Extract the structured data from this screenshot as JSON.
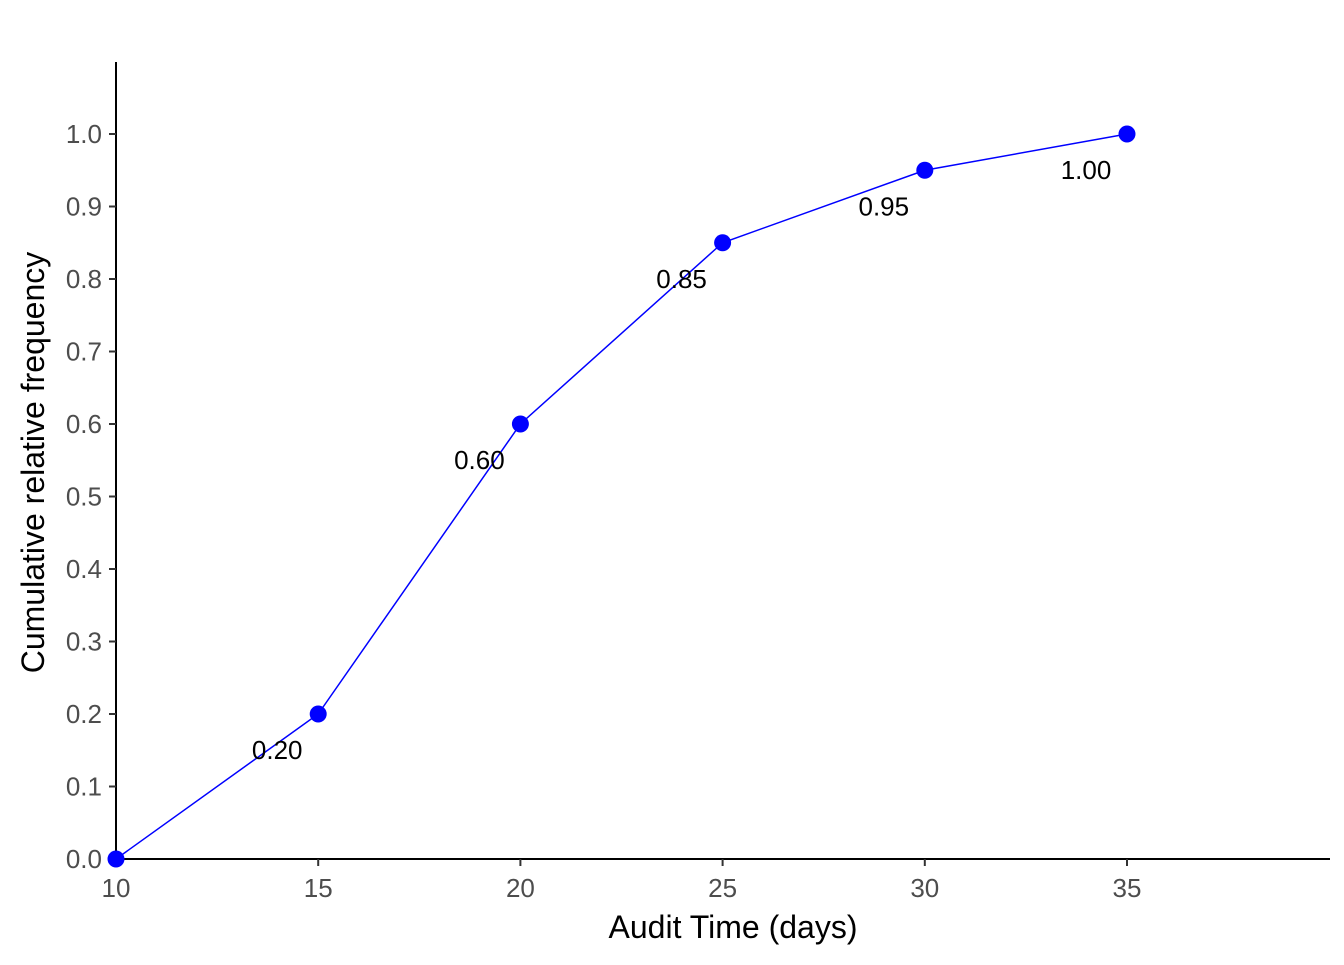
{
  "chart_data": {
    "type": "line",
    "title": "",
    "xlabel": "Audit Time (days)",
    "ylabel": "Cumulative relative frequency",
    "x": [
      10,
      15,
      20,
      25,
      30,
      35
    ],
    "series": [
      {
        "values": [
          0.0,
          0.2,
          0.6,
          0.85,
          0.95,
          1.0
        ],
        "data_labels": [
          "",
          "0.20",
          "0.60",
          "0.85",
          "0.95",
          "1.00"
        ],
        "color": "#0000ff",
        "marker": "circle"
      }
    ],
    "xlim": [
      10,
      40
    ],
    "ylim": [
      0,
      1.1
    ],
    "x_ticks": [
      10,
      15,
      20,
      25,
      30,
      35
    ],
    "x_tick_labels": [
      "10",
      "15",
      "20",
      "25",
      "30",
      "35"
    ],
    "y_ticks": [
      0,
      0.1,
      0.2,
      0.3,
      0.4,
      0.5,
      0.6,
      0.7,
      0.8,
      0.9,
      1.0
    ],
    "y_tick_labels": [
      "0.0",
      "0.1",
      "0.2",
      "0.3",
      "0.4",
      "0.5",
      "0.6",
      "0.7",
      "0.8",
      "0.9",
      "1.0"
    ],
    "grid": false,
    "legend": "none"
  }
}
